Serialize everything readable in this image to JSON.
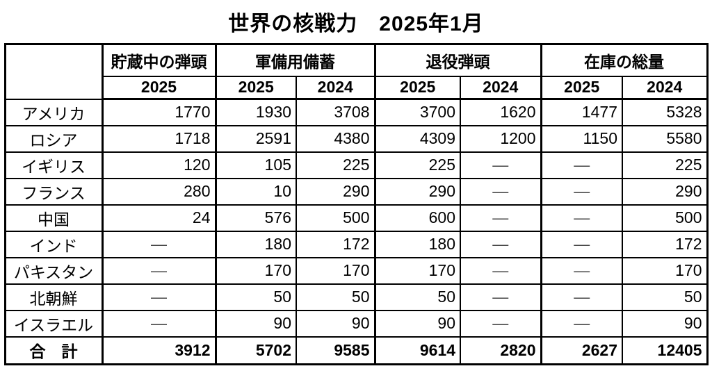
{
  "title": "世界の核戦力　2025年1月",
  "colors": {
    "background": "#ffffff",
    "text": "#000000",
    "border": "#000000"
  },
  "chart_data": {
    "type": "table",
    "title": "世界の核戦力　2025年1月",
    "missing_value_symbol": "—",
    "column_groups": [
      {
        "label": "貯蔵中の弾頭",
        "years": [
          "2025"
        ]
      },
      {
        "label": "軍備用備蓄",
        "years": [
          "2025",
          "2024"
        ]
      },
      {
        "label": "退役弾頭",
        "years": [
          "2025",
          "2024"
        ]
      },
      {
        "label": "在庫の総量",
        "years": [
          "2025",
          "2024"
        ]
      }
    ],
    "rows": [
      {
        "label": "アメリカ",
        "values": [
          "1770",
          "1930",
          "3708",
          "3700",
          "1620",
          "1477",
          "5328"
        ]
      },
      {
        "label": "ロシア",
        "values": [
          "1718",
          "2591",
          "4380",
          "4309",
          "1200",
          "1150",
          "5580"
        ]
      },
      {
        "label": "イギリス",
        "values": [
          "120",
          "105",
          "225",
          "225",
          "—",
          "—",
          "225"
        ]
      },
      {
        "label": "フランス",
        "values": [
          "280",
          "10",
          "290",
          "290",
          "—",
          "—",
          "290"
        ]
      },
      {
        "label": "中国",
        "values": [
          "24",
          "576",
          "500",
          "600",
          "—",
          "—",
          "500"
        ]
      },
      {
        "label": "インド",
        "values": [
          "—",
          "180",
          "172",
          "180",
          "—",
          "—",
          "172"
        ]
      },
      {
        "label": "パキスタン",
        "values": [
          "—",
          "170",
          "170",
          "170",
          "—",
          "—",
          "170"
        ]
      },
      {
        "label": "北朝鮮",
        "values": [
          "—",
          "50",
          "50",
          "50",
          "—",
          "—",
          "50"
        ]
      },
      {
        "label": "イスラエル",
        "values": [
          "—",
          "90",
          "90",
          "90",
          "—",
          "—",
          "90"
        ]
      }
    ],
    "total_row": {
      "label": "合　計",
      "values": [
        "3912",
        "5702",
        "9585",
        "9614",
        "2820",
        "2627",
        "12405"
      ]
    }
  }
}
